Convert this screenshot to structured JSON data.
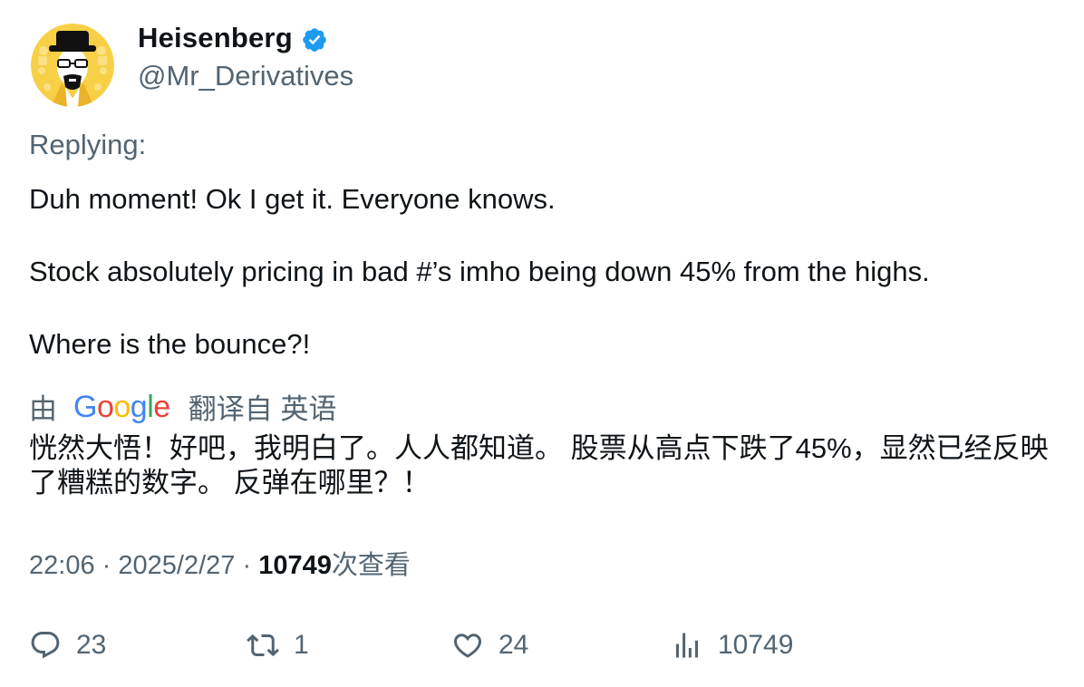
{
  "author": {
    "display_name": "Heisenberg",
    "handle": "@Mr_Derivatives",
    "verified": true,
    "verified_color": "#1d9bf0",
    "avatar_icon": "heisenberg-avatar-icon"
  },
  "replying_label": "Replying:",
  "body": {
    "line1": "Duh moment! Ok I get it. Everyone knows.",
    "line2": "Stock absolutely pricing in bad #’s imho being down 45% from the highs.",
    "line3": "Where is the bounce?!"
  },
  "translation": {
    "by_label": "由",
    "provider_letters": [
      "G",
      "o",
      "o",
      "g",
      "l",
      "e"
    ],
    "from_label": "翻译自 英语",
    "text": "恍然大悟！好吧，我明白了。人人都知道。 股票从高点下跌了45%，显然已经反映了糟糕的数字。 反弹在哪里？！"
  },
  "meta": {
    "time": "22:06",
    "separator": "·",
    "date": "2025/2/27",
    "views_number": "10749",
    "views_label": "次查看"
  },
  "actions": {
    "reply": {
      "icon": "reply-icon",
      "count": "23"
    },
    "retweet": {
      "icon": "retweet-icon",
      "count": "1"
    },
    "like": {
      "icon": "heart-icon",
      "count": "24"
    },
    "views": {
      "icon": "analytics-icon",
      "count": "10749"
    }
  },
  "colors": {
    "text_primary": "#0f1419",
    "text_secondary": "#536471",
    "google_blue": "#4285f4",
    "google_red": "#ea4335",
    "google_yellow": "#fbbc05",
    "google_green": "#34a853"
  }
}
